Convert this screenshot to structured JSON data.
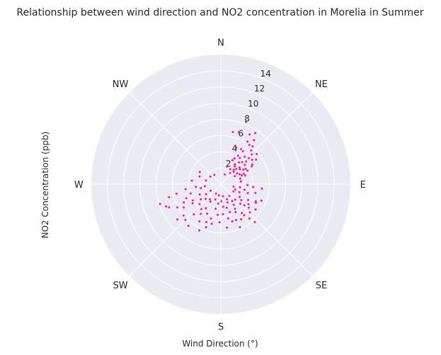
{
  "chart_data": {
    "type": "scatter",
    "projection": "polar",
    "title": "Relationship between wind direction and NO2 concentration in Morelia in Summer",
    "xlabel": "Wind Direction (°)",
    "ylabel": "NO2 Concentration (ppb)",
    "theta_direction": "clockwise",
    "theta_zero": "N",
    "direction_labels": [
      "N",
      "NE",
      "E",
      "SE",
      "S",
      "SW",
      "W",
      "NW"
    ],
    "r_ticks": [
      2,
      4,
      6,
      8,
      10,
      12,
      14
    ],
    "rlim": [
      0,
      16
    ],
    "grid": true,
    "background": "#EAEAF2",
    "grid_color": "#FFFFFF",
    "marker_color": "#FF1493",
    "points": [
      {
        "theta": 22,
        "r": 8.3
      },
      {
        "theta": 19,
        "r": 6.8
      },
      {
        "theta": 13,
        "r": 6.6
      },
      {
        "theta": 34,
        "r": 7.6
      },
      {
        "theta": 30,
        "r": 7.1
      },
      {
        "theta": 37,
        "r": 6.8
      },
      {
        "theta": 36,
        "r": 6.0
      },
      {
        "theta": 32,
        "r": 6.2
      },
      {
        "theta": 30,
        "r": 5.0
      },
      {
        "theta": 34,
        "r": 4.9
      },
      {
        "theta": 40,
        "r": 6.1
      },
      {
        "theta": 42,
        "r": 5.6
      },
      {
        "theta": 46,
        "r": 5.3
      },
      {
        "theta": 23,
        "r": 4.9
      },
      {
        "theta": 31,
        "r": 4.1
      },
      {
        "theta": 36,
        "r": 4.0
      },
      {
        "theta": 41,
        "r": 4.5
      },
      {
        "theta": 48,
        "r": 4.2
      },
      {
        "theta": 51,
        "r": 3.8
      },
      {
        "theta": 48,
        "r": 3.1
      },
      {
        "theta": 57,
        "r": 3.3
      },
      {
        "theta": 45,
        "r": 2.7
      },
      {
        "theta": 46,
        "r": 2.2
      },
      {
        "theta": 52,
        "r": 3.0
      },
      {
        "theta": 38,
        "r": 2.8
      },
      {
        "theta": 56,
        "r": 2.4
      },
      {
        "theta": 60,
        "r": 4.4
      },
      {
        "theta": 63,
        "r": 3.7
      },
      {
        "theta": 65,
        "r": 3.1
      },
      {
        "theta": 58,
        "r": 4.6
      },
      {
        "theta": 52,
        "r": 4.9
      },
      {
        "theta": 40,
        "r": 3.5
      },
      {
        "theta": 28,
        "r": 3.6
      },
      {
        "theta": 60,
        "r": 2.0
      },
      {
        "theta": 70,
        "r": 3.2
      },
      {
        "theta": 44,
        "r": 3.8
      },
      {
        "theta": 50,
        "r": 5.8
      },
      {
        "theta": 26,
        "r": 3.3
      },
      {
        "theta": 62,
        "r": 2.6
      },
      {
        "theta": 35,
        "r": 3.0
      },
      {
        "theta": 55,
        "r": 5.3
      },
      {
        "theta": 47,
        "r": 4.7
      },
      {
        "theta": 67,
        "r": 2.8
      },
      {
        "theta": 42,
        "r": 2.4
      },
      {
        "theta": 32,
        "r": 2.2
      },
      {
        "theta": 58,
        "r": 3.6
      },
      {
        "theta": 19,
        "r": 2.3
      },
      {
        "theta": 74,
        "r": 2.5
      },
      {
        "theta": 40,
        "r": 1.8
      },
      {
        "theta": 22,
        "r": 1.3
      },
      {
        "theta": 82,
        "r": 2.5
      },
      {
        "theta": 96,
        "r": 5.1
      },
      {
        "theta": 104,
        "r": 4.4
      },
      {
        "theta": 112,
        "r": 5.4
      },
      {
        "theta": 116,
        "r": 4.8
      },
      {
        "theta": 126,
        "r": 5.3
      },
      {
        "theta": 108,
        "r": 3.5
      },
      {
        "theta": 120,
        "r": 3.9
      },
      {
        "theta": 103,
        "r": 3.0
      },
      {
        "theta": 99,
        "r": 2.4
      },
      {
        "theta": 92,
        "r": 3.3
      },
      {
        "theta": 113,
        "r": 2.5
      },
      {
        "theta": 124,
        "r": 2.8
      },
      {
        "theta": 132,
        "r": 3.9
      },
      {
        "theta": 138,
        "r": 6.3
      },
      {
        "theta": 130,
        "r": 4.5
      },
      {
        "theta": 144,
        "r": 4.4
      },
      {
        "theta": 150,
        "r": 5.0
      },
      {
        "theta": 140,
        "r": 5.5
      },
      {
        "theta": 157,
        "r": 4.8
      },
      {
        "theta": 162,
        "r": 3.6
      },
      {
        "theta": 150,
        "r": 3.5
      },
      {
        "theta": 146,
        "r": 2.5
      },
      {
        "theta": 160,
        "r": 2.4
      },
      {
        "theta": 135,
        "r": 3.4
      },
      {
        "theta": 120,
        "r": 1.8
      },
      {
        "theta": 172,
        "r": 5.4
      },
      {
        "theta": 176,
        "r": 3.7
      },
      {
        "theta": 166,
        "r": 3.0
      },
      {
        "theta": 168,
        "r": 4.3
      },
      {
        "theta": 178,
        "r": 2.1
      },
      {
        "theta": 170,
        "r": 1.5
      },
      {
        "theta": 152,
        "r": 3.9
      },
      {
        "theta": 143,
        "r": 4.8
      },
      {
        "theta": 128,
        "r": 3.2
      },
      {
        "theta": 110,
        "r": 1.9
      },
      {
        "theta": 137,
        "r": 2.6
      },
      {
        "theta": 118,
        "r": 4.9
      },
      {
        "theta": 100,
        "r": 1.6
      },
      {
        "theta": 156,
        "r": 5.8
      },
      {
        "theta": 134,
        "r": 5.0
      },
      {
        "theta": 126,
        "r": 4.2
      },
      {
        "theta": 163,
        "r": 4.8
      },
      {
        "theta": 148,
        "r": 3.0
      },
      {
        "theta": 174,
        "r": 2.8
      },
      {
        "theta": 144,
        "r": 1.8
      },
      {
        "theta": 95,
        "r": 4.0
      },
      {
        "theta": 158,
        "r": 2.0
      },
      {
        "theta": 182,
        "r": 4.7
      },
      {
        "theta": 186,
        "r": 3.8
      },
      {
        "theta": 188,
        "r": 2.4
      },
      {
        "theta": 192,
        "r": 3.1
      },
      {
        "theta": 196,
        "r": 4.4
      },
      {
        "theta": 201,
        "r": 5.0
      },
      {
        "theta": 205,
        "r": 4.0
      },
      {
        "theta": 210,
        "r": 5.3
      },
      {
        "theta": 214,
        "r": 4.4
      },
      {
        "theta": 218,
        "r": 6.5
      },
      {
        "theta": 222,
        "r": 5.0
      },
      {
        "theta": 225,
        "r": 6.2
      },
      {
        "theta": 230,
        "r": 6.0
      },
      {
        "theta": 231,
        "r": 6.9
      },
      {
        "theta": 236,
        "r": 4.2
      },
      {
        "theta": 238,
        "r": 5.4
      },
      {
        "theta": 242,
        "r": 6.1
      },
      {
        "theta": 244,
        "r": 5.1
      },
      {
        "theta": 248,
        "r": 4.6
      },
      {
        "theta": 253,
        "r": 3.9
      },
      {
        "theta": 256,
        "r": 6.6
      },
      {
        "theta": 258,
        "r": 5.6
      },
      {
        "theta": 262,
        "r": 4.4
      },
      {
        "theta": 264,
        "r": 3.1
      },
      {
        "theta": 248,
        "r": 7.3
      },
      {
        "theta": 246,
        "r": 7.0
      },
      {
        "theta": 252,
        "r": 7.9
      },
      {
        "theta": 240,
        "r": 4.0
      },
      {
        "theta": 227,
        "r": 3.6
      },
      {
        "theta": 233,
        "r": 3.1
      },
      {
        "theta": 226,
        "r": 2.6
      },
      {
        "theta": 211,
        "r": 2.5
      },
      {
        "theta": 200,
        "r": 2.0
      },
      {
        "theta": 216,
        "r": 2.3
      },
      {
        "theta": 205,
        "r": 6.3
      },
      {
        "theta": 199,
        "r": 5.6
      },
      {
        "theta": 193,
        "r": 5.0
      },
      {
        "theta": 212,
        "r": 3.5
      },
      {
        "theta": 259,
        "r": 2.5
      },
      {
        "theta": 236,
        "r": 2.2
      },
      {
        "theta": 244,
        "r": 2.9
      },
      {
        "theta": 218,
        "r": 3.9
      },
      {
        "theta": 190,
        "r": 1.4
      },
      {
        "theta": 207,
        "r": 1.3
      },
      {
        "theta": 238,
        "r": 1.5
      },
      {
        "theta": 263,
        "r": 2.0
      },
      {
        "theta": 277,
        "r": 3.6
      },
      {
        "theta": 290,
        "r": 2.8
      },
      {
        "theta": 300,
        "r": 3.0
      },
      {
        "theta": 284,
        "r": 1.9
      },
      {
        "theta": 306,
        "r": 1.6
      },
      {
        "theta": 325,
        "r": 1.4
      }
    ]
  }
}
